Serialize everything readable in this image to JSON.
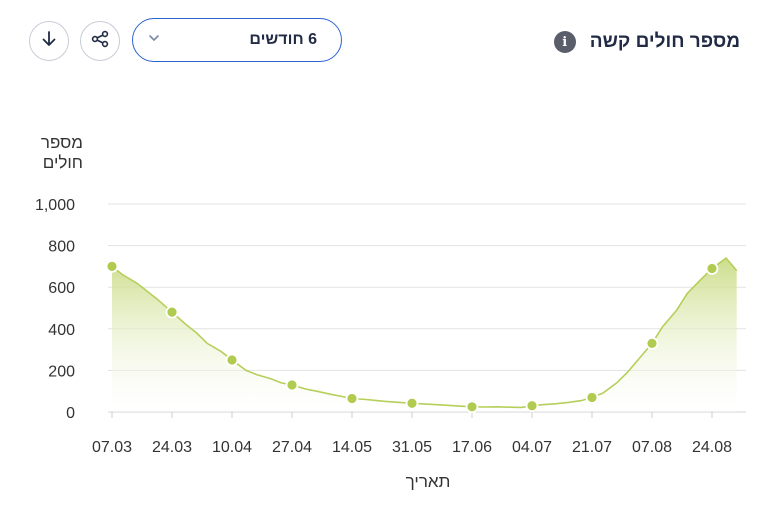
{
  "header": {
    "title": "מספר חולים קשה",
    "info_icon": "info-icon",
    "dropdown_value": "6 חודשים",
    "share_icon": "share-icon",
    "download_icon": "download-icon"
  },
  "colors": {
    "accent": "#2a63d4",
    "line": "#b5cf5a",
    "marker": "#b0cb4f",
    "fill_top": "#c9dc85",
    "grid": "#e3e3e3"
  },
  "chart_data": {
    "type": "area",
    "ylabel_lines": [
      "מספר",
      "חולים"
    ],
    "xlabel": "תאריך",
    "ylim": [
      0,
      1000
    ],
    "yticks": [
      0,
      200,
      400,
      600,
      800,
      1000
    ],
    "ytick_labels": [
      "0",
      "200",
      "400",
      "600",
      "800",
      "1,000"
    ],
    "xtick_labels": [
      "07.03",
      "24.03",
      "10.04",
      "27.04",
      "14.05",
      "31.05",
      "17.06",
      "04.07",
      "21.07",
      "07.08",
      "24.08"
    ],
    "grid": true,
    "series": [
      {
        "x": [
          "07.03",
          "10.03",
          "14.03",
          "17.03",
          "20.03",
          "24.03",
          "28.03",
          "31.03",
          "03.04",
          "07.04",
          "10.04",
          "14.04",
          "17.04",
          "21.04",
          "24.04",
          "27.04",
          "01.05",
          "04.05",
          "08.05",
          "11.05",
          "14.05",
          "18.05",
          "21.05",
          "24.05",
          "28.05",
          "31.05",
          "04.06",
          "07.06",
          "10.06",
          "14.06",
          "17.06",
          "21.06",
          "24.06",
          "27.06",
          "01.07",
          "04.07",
          "07.07",
          "11.07",
          "14.07",
          "18.07",
          "21.07",
          "24.07",
          "28.07",
          "31.07",
          "03.08",
          "07.08",
          "10.08",
          "14.08",
          "17.08",
          "21.08",
          "24.08",
          "28.08",
          "31.08"
        ],
        "values": [
          700,
          660,
          620,
          580,
          540,
          480,
          420,
          380,
          330,
          290,
          250,
          200,
          180,
          160,
          140,
          130,
          110,
          100,
          85,
          75,
          65,
          60,
          55,
          50,
          45,
          42,
          38,
          35,
          32,
          28,
          25,
          24,
          25,
          23,
          22,
          30,
          35,
          40,
          45,
          55,
          70,
          90,
          140,
          190,
          250,
          330,
          410,
          490,
          570,
          640,
          690,
          740,
          680
        ]
      }
    ],
    "markers": [
      {
        "x": "07.03",
        "y": 700
      },
      {
        "x": "24.03",
        "y": 480
      },
      {
        "x": "10.04",
        "y": 250
      },
      {
        "x": "27.04",
        "y": 130
      },
      {
        "x": "14.05",
        "y": 65
      },
      {
        "x": "31.05",
        "y": 42
      },
      {
        "x": "17.06",
        "y": 25
      },
      {
        "x": "04.07",
        "y": 30
      },
      {
        "x": "21.07",
        "y": 70
      },
      {
        "x": "07.08",
        "y": 330
      },
      {
        "x": "24.08",
        "y": 690
      }
    ]
  }
}
